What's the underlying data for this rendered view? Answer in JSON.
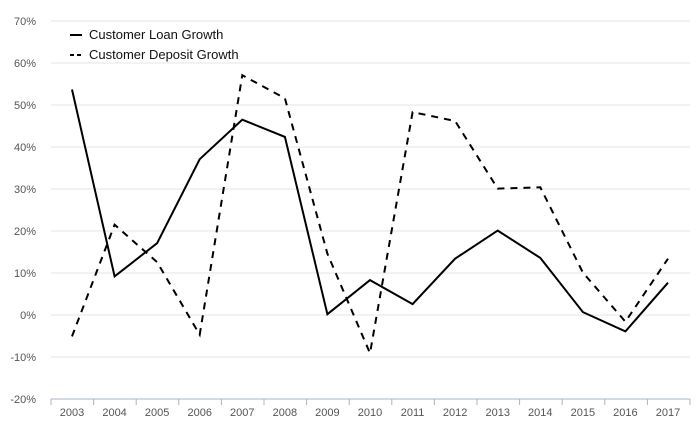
{
  "chart_data": {
    "type": "line",
    "title": "",
    "xlabel": "",
    "ylabel": "",
    "categories": [
      "2003",
      "2004",
      "2005",
      "2006",
      "2007",
      "2008",
      "2009",
      "2010",
      "2011",
      "2012",
      "2013",
      "2014",
      "2015",
      "2016",
      "2017"
    ],
    "ylim": [
      -20,
      70
    ],
    "yticks": [
      -20,
      -10,
      0,
      10,
      20,
      30,
      40,
      50,
      60,
      70
    ],
    "ytick_labels": [
      "-20%",
      "-10%",
      "0%",
      "10%",
      "20%",
      "30%",
      "40%",
      "50%",
      "60%",
      "70%"
    ],
    "grid": "horizontal",
    "legend_position": "top-left",
    "series": [
      {
        "name": "Customer Loan Growth",
        "style": "solid",
        "color": "#000000",
        "values": [
          53.7,
          9.2,
          17.1,
          37.1,
          46.5,
          42.4,
          0.2,
          8.3,
          2.6,
          13.4,
          20.1,
          13.6,
          0.7,
          -3.9,
          7.7
        ]
      },
      {
        "name": "Customer Deposit Growth",
        "style": "dashed",
        "color": "#000000",
        "values": [
          -5.1,
          21.5,
          12.6,
          -4.7,
          57.1,
          51.6,
          14.6,
          -9.1,
          48.3,
          46.2,
          30.1,
          30.4,
          10.1,
          -1.6,
          13.4
        ]
      }
    ]
  }
}
